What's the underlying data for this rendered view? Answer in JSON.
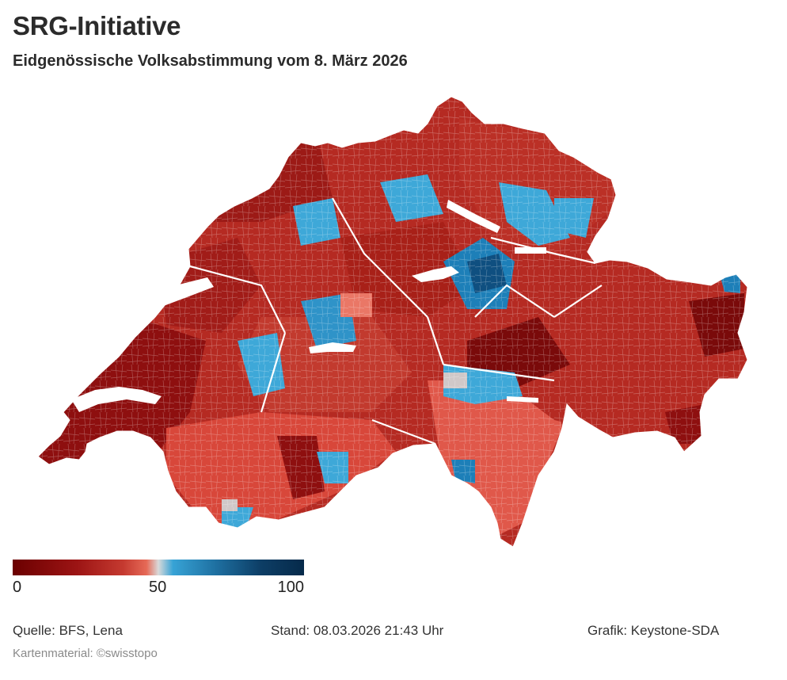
{
  "header": {
    "title": "SRG-Initiative",
    "subtitle": "Eidgenössische Volksabstimmung vom 8. März 2026"
  },
  "legend": {
    "min_label": "0",
    "mid_label": "50",
    "max_label": "100",
    "colors": [
      "#6b0000",
      "#9c1414",
      "#c53a30",
      "#e66a57",
      "#d9d9d9",
      "#37a3d6",
      "#1e6fa0",
      "#0d3e66",
      "#062a4a"
    ]
  },
  "map": {
    "colors": {
      "dark_red": "#8e0f0f",
      "red": "#b52a22",
      "light_red": "#d8473a",
      "salmon": "#ea7766",
      "grey": "#d0c8c8",
      "light_blue": "#3ea8d8",
      "blue": "#1d7fb8",
      "dark_blue": "#0f4f80",
      "lake": "#ffffff"
    }
  },
  "footer": {
    "source": "Quelle: BFS, Lena",
    "stand": "Stand: 08.03.2026 21:43 Uhr",
    "grafik": "Grafik: Keystone-SDA",
    "credit": "Kartenmaterial: ©swisstopo"
  }
}
